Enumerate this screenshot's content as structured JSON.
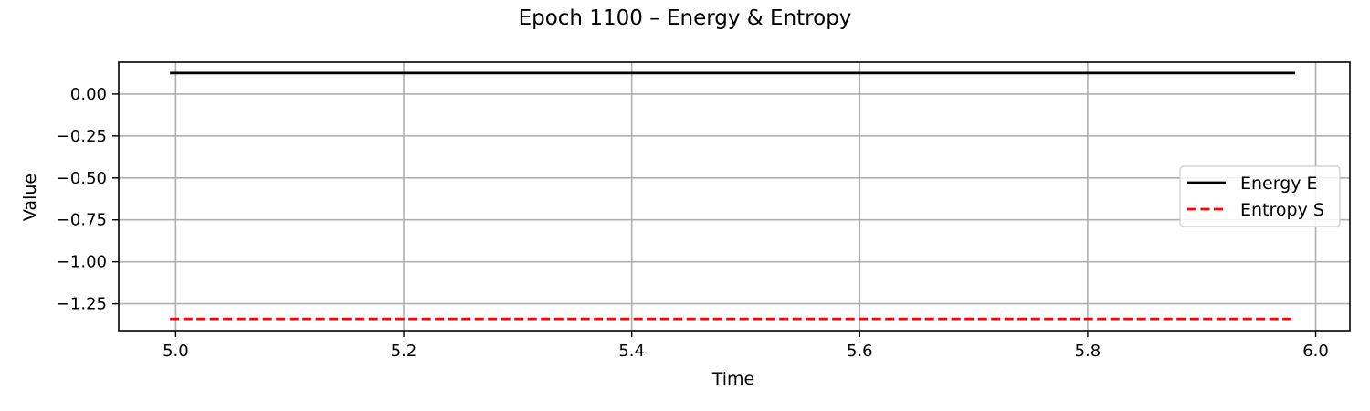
{
  "chart_data": {
    "type": "line",
    "title": "Epoch 1100 – Energy & Entropy",
    "xlabel": "Time",
    "ylabel": "Value",
    "xlim": [
      4.95,
      6.03
    ],
    "ylim": [
      -1.41,
      0.19
    ],
    "xticks": [
      5.0,
      5.2,
      5.4,
      5.6,
      5.8,
      6.0
    ],
    "xtick_labels": [
      "5.0",
      "5.2",
      "5.4",
      "5.6",
      "5.8",
      "6.0"
    ],
    "yticks": [
      0.0,
      -0.25,
      -0.5,
      -0.75,
      -1.0,
      -1.25
    ],
    "ytick_labels": [
      "0.00",
      "−0.25",
      "−0.50",
      "−0.75",
      "−1.00",
      "−1.25"
    ],
    "grid": true,
    "legend_position": "center-right",
    "series": [
      {
        "name": "Energy E",
        "color": "#000000",
        "linestyle": "solid",
        "x": [
          4.995,
          5.982
        ],
        "y": [
          0.125,
          0.125
        ]
      },
      {
        "name": "Entropy S",
        "color": "#ff0000",
        "linestyle": "dashed",
        "x": [
          4.995,
          5.982
        ],
        "y": [
          -1.34,
          -1.34
        ]
      }
    ]
  }
}
